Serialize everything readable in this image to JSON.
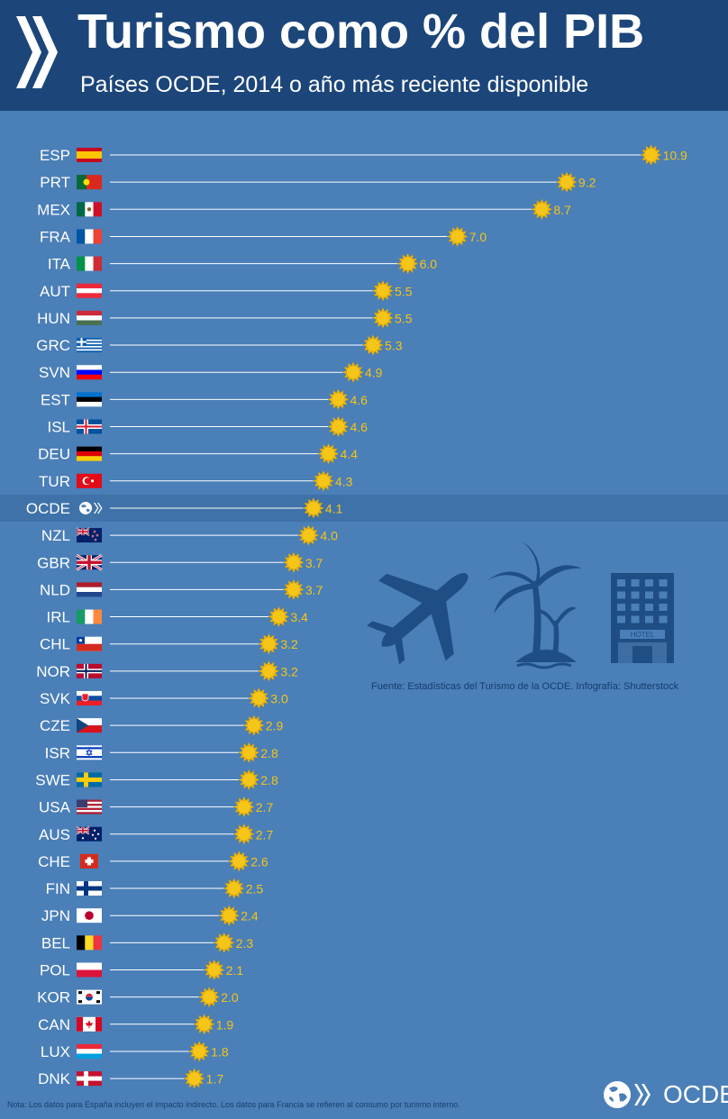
{
  "header": {
    "title": "Turismo como % del PIB",
    "subtitle": "Países OCDE, 2014 o año más reciente disponible"
  },
  "colors": {
    "header_bg": "#1c467a",
    "chart_bg": "#4a7fb8",
    "highlight_row": "#3f72a8",
    "line": "#ffffff",
    "marker": "#f5c518",
    "value_label": "#f5c518",
    "country_label": "#ffffff",
    "icon_fill": "#1f4e85"
  },
  "chart_data": {
    "type": "dot",
    "title": "Turismo como % del PIB",
    "subtitle": "Países OCDE, 2014 o año más reciente disponible",
    "highlight": "OCDE",
    "categories": [
      "ESP",
      "PRT",
      "MEX",
      "FRA",
      "ITA",
      "AUT",
      "HUN",
      "GRC",
      "SVN",
      "EST",
      "ISL",
      "DEU",
      "TUR",
      "OCDE",
      "NZL",
      "GBR",
      "NLD",
      "IRL",
      "CHL",
      "NOR",
      "SVK",
      "CZE",
      "ISR",
      "SWE",
      "USA",
      "AUS",
      "CHE",
      "FIN",
      "JPN",
      "BEL",
      "POL",
      "KOR",
      "CAN",
      "LUX",
      "DNK"
    ],
    "values": [
      10.9,
      9.2,
      8.7,
      7.0,
      6.0,
      5.5,
      5.5,
      5.3,
      4.9,
      4.6,
      4.6,
      4.4,
      4.3,
      4.1,
      4.0,
      3.7,
      3.7,
      3.4,
      3.2,
      3.2,
      3.0,
      2.9,
      2.8,
      2.8,
      2.7,
      2.7,
      2.6,
      2.5,
      2.4,
      2.3,
      2.1,
      2.0,
      1.9,
      1.8,
      1.7
    ],
    "labels": [
      "10.9",
      "9.2",
      "8.7",
      "7.0",
      "6.0",
      "5.5",
      "5.5",
      "5.3",
      "4.9",
      "4.6",
      "4.6",
      "4.4",
      "4.3",
      "4.1",
      "4.0",
      "3.7",
      "3.7",
      "3.4",
      "3.2",
      "3.2",
      "3.0",
      "2.9",
      "2.8",
      "2.8",
      "2.7",
      "2.7",
      "2.6",
      "2.5",
      "2.4",
      "2.3",
      "2.1",
      "2.0",
      "1.9",
      "1.8",
      "1.7"
    ]
  },
  "icons": [
    "airplane-icon",
    "palm-island-icon",
    "hotel-icon"
  ],
  "hotel_sign": "HOTEL",
  "footer": {
    "source": "Fuente: Estadísticas del Turismo de la OCDE. Infografía: Shutterstock",
    "note": "Nota: Los datos para España incluyen el impacto indirecto. Los datos para Francia se refieren al consumo por turismo interno.",
    "brand": "OCDE"
  }
}
